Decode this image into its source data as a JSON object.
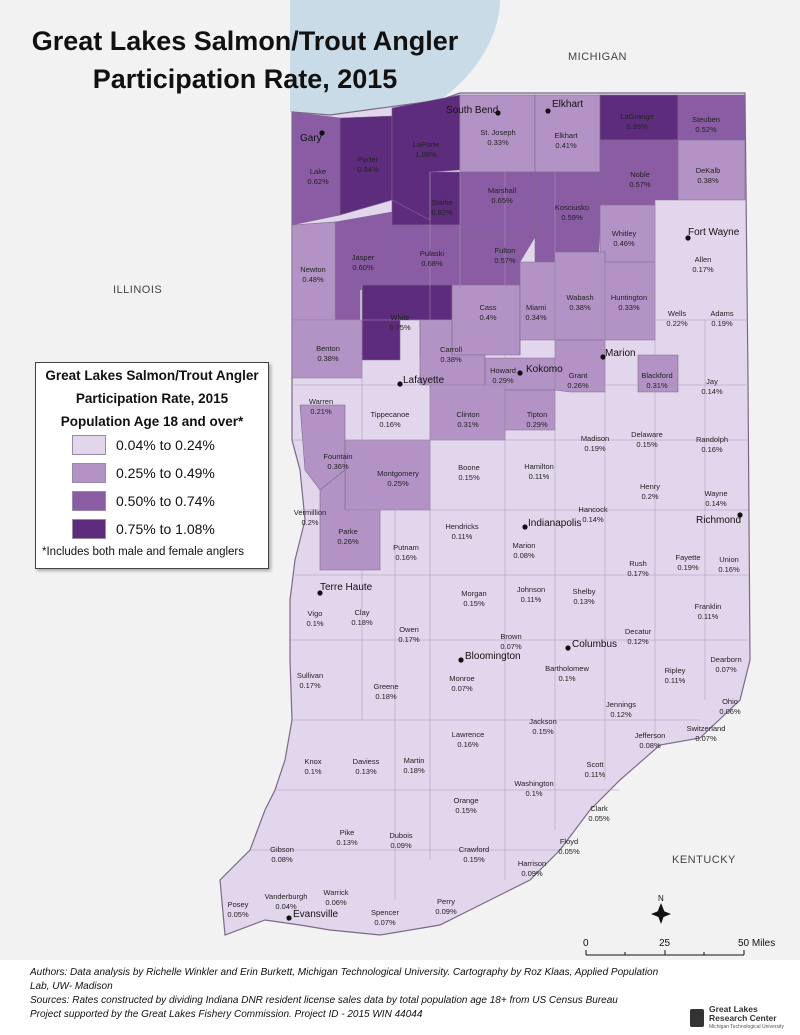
{
  "title_line1": "Great Lakes Salmon/Trout Angler",
  "title_line2": "Participation Rate, 2015",
  "states": {
    "michigan": "MICHIGAN",
    "illinois": "ILLINOIS",
    "kentucky": "KENTUCKY"
  },
  "legend": {
    "title1": "Great Lakes Salmon/Trout Angler",
    "title2": "Participation Rate, 2015",
    "title3": "Population Age 18 and over*",
    "classes": [
      {
        "label": "0.04% to 0.24%",
        "color": "#e2d6ec"
      },
      {
        "label": "0.25% to 0.49%",
        "color": "#b393c5"
      },
      {
        "label": "0.50% to 0.74%",
        "color": "#8a5ca4"
      },
      {
        "label": "0.75% to 1.08%",
        "color": "#5e2c7c"
      }
    ],
    "note": "*Includes both male and female anglers"
  },
  "scale": {
    "t0": "0",
    "t1": "25",
    "t2": "50 Miles"
  },
  "footer": {
    "line1": "Authors: Data analysis by Richelle Winkler and Erin Burkett, Michigan Technological University. Cartography by Roz Klaas, Applied Population Lab, UW- Madison",
    "line2": "Sources: Rates constructed by dividing Indiana DNR resident license sales data by total population age 18+ from US Census Bureau",
    "line3": "Project supported by the Great Lakes Fishery Commission. Project ID - 2015 WIN 44044"
  },
  "logo": {
    "line1": "Great Lakes",
    "line2": "Research Center",
    "line3": "Michigan Technological University"
  },
  "cities": [
    {
      "name": "South Bend"
    },
    {
      "name": "Elkhart"
    },
    {
      "name": "Gary"
    },
    {
      "name": "Fort Wayne"
    },
    {
      "name": "Marion"
    },
    {
      "name": "Kokomo"
    },
    {
      "name": "Lafayette"
    },
    {
      "name": "Indianapolis"
    },
    {
      "name": "Richmond"
    },
    {
      "name": "Terre Haute"
    },
    {
      "name": "Bloomington"
    },
    {
      "name": "Columbus"
    },
    {
      "name": "Evansville"
    }
  ],
  "counties": [
    {
      "name": "Lake",
      "value": "0.62%",
      "cls": 2
    },
    {
      "name": "Porter",
      "value": "0.94%",
      "cls": 3
    },
    {
      "name": "LaPorte",
      "value": "1.08%",
      "cls": 3
    },
    {
      "name": "St. Joseph",
      "value": "0.33%",
      "cls": 1
    },
    {
      "name": "Elkhart",
      "value": "0.41%",
      "cls": 1
    },
    {
      "name": "LaGrange",
      "value": "0.95%",
      "cls": 3
    },
    {
      "name": "Steuben",
      "value": "0.52%",
      "cls": 2
    },
    {
      "name": "Newton",
      "value": "0.48%",
      "cls": 1
    },
    {
      "name": "Jasper",
      "value": "0.60%",
      "cls": 2
    },
    {
      "name": "Starke",
      "value": "0.82%",
      "cls": 3
    },
    {
      "name": "Marshall",
      "value": "0.65%",
      "cls": 2
    },
    {
      "name": "Kosciusko",
      "value": "0.59%",
      "cls": 2
    },
    {
      "name": "Noble",
      "value": "0.57%",
      "cls": 2
    },
    {
      "name": "DeKalb",
      "value": "0.38%",
      "cls": 1
    },
    {
      "name": "Pulaski",
      "value": "0.68%",
      "cls": 2
    },
    {
      "name": "Fulton",
      "value": "0.57%",
      "cls": 2
    },
    {
      "name": "Whitley",
      "value": "0.46%",
      "cls": 1
    },
    {
      "name": "Allen",
      "value": "0.17%",
      "cls": 0
    },
    {
      "name": "Benton",
      "value": "0.38%",
      "cls": 1
    },
    {
      "name": "White",
      "value": "0.75%",
      "cls": 3
    },
    {
      "name": "Cass",
      "value": "0.4%",
      "cls": 1
    },
    {
      "name": "Miami",
      "value": "0.34%",
      "cls": 1
    },
    {
      "name": "Wabash",
      "value": "0.38%",
      "cls": 1
    },
    {
      "name": "Huntington",
      "value": "0.33%",
      "cls": 1
    },
    {
      "name": "Wells",
      "value": "0.22%",
      "cls": 0
    },
    {
      "name": "Adams",
      "value": "0.19%",
      "cls": 0
    },
    {
      "name": "Carroll",
      "value": "0.38%",
      "cls": 1
    },
    {
      "name": "Howard",
      "value": "0.29%",
      "cls": 1
    },
    {
      "name": "Grant",
      "value": "0.26%",
      "cls": 1
    },
    {
      "name": "Blackford",
      "value": "0.31%",
      "cls": 1
    },
    {
      "name": "Jay",
      "value": "0.14%",
      "cls": 0
    },
    {
      "name": "Warren",
      "value": "0.21%",
      "cls": 0
    },
    {
      "name": "Tippecanoe",
      "value": "0.16%",
      "cls": 0
    },
    {
      "name": "Clinton",
      "value": "0.31%",
      "cls": 1
    },
    {
      "name": "Tipton",
      "value": "0.29%",
      "cls": 1
    },
    {
      "name": "Madison",
      "value": "0.19%",
      "cls": 0
    },
    {
      "name": "Delaware",
      "value": "0.15%",
      "cls": 0
    },
    {
      "name": "Randolph",
      "value": "0.16%",
      "cls": 0
    },
    {
      "name": "Fountain",
      "value": "0.36%",
      "cls": 1
    },
    {
      "name": "Montgomery",
      "value": "0.25%",
      "cls": 1
    },
    {
      "name": "Boone",
      "value": "0.15%",
      "cls": 0
    },
    {
      "name": "Hamilton",
      "value": "0.11%",
      "cls": 0
    },
    {
      "name": "Vermillion",
      "value": "0.2%",
      "cls": 0
    },
    {
      "name": "Parke",
      "value": "0.26%",
      "cls": 1
    },
    {
      "name": "Hendricks",
      "value": "0.11%",
      "cls": 0
    },
    {
      "name": "Marion",
      "value": "0.08%",
      "cls": 0
    },
    {
      "name": "Hancock",
      "value": "0.14%",
      "cls": 0
    },
    {
      "name": "Henry",
      "value": "0.2%",
      "cls": 0
    },
    {
      "name": "Wayne",
      "value": "0.14%",
      "cls": 0
    },
    {
      "name": "Putnam",
      "value": "0.16%",
      "cls": 0
    },
    {
      "name": "Vigo",
      "value": "0.1%",
      "cls": 0
    },
    {
      "name": "Clay",
      "value": "0.18%",
      "cls": 0
    },
    {
      "name": "Morgan",
      "value": "0.15%",
      "cls": 0
    },
    {
      "name": "Johnson",
      "value": "0.11%",
      "cls": 0
    },
    {
      "name": "Shelby",
      "value": "0.13%",
      "cls": 0
    },
    {
      "name": "Rush",
      "value": "0.17%",
      "cls": 0
    },
    {
      "name": "Fayette",
      "value": "0.19%",
      "cls": 0
    },
    {
      "name": "Union",
      "value": "0.16%",
      "cls": 0
    },
    {
      "name": "Owen",
      "value": "0.17%",
      "cls": 0
    },
    {
      "name": "Brown",
      "value": "0.07%",
      "cls": 0
    },
    {
      "name": "Decatur",
      "value": "0.12%",
      "cls": 0
    },
    {
      "name": "Franklin",
      "value": "0.11%",
      "cls": 0
    },
    {
      "name": "Sullivan",
      "value": "0.17%",
      "cls": 0
    },
    {
      "name": "Greene",
      "value": "0.18%",
      "cls": 0
    },
    {
      "name": "Monroe",
      "value": "0.07%",
      "cls": 0
    },
    {
      "name": "Bartholomew",
      "value": "0.1%",
      "cls": 0
    },
    {
      "name": "Ripley",
      "value": "0.11%",
      "cls": 0
    },
    {
      "name": "Dearborn",
      "value": "0.07%",
      "cls": 0
    },
    {
      "name": "Jennings",
      "value": "0.12%",
      "cls": 0
    },
    {
      "name": "Ohio",
      "value": "0.06%",
      "cls": 0
    },
    {
      "name": "Lawrence",
      "value": "0.16%",
      "cls": 0
    },
    {
      "name": "Jackson",
      "value": "0.15%",
      "cls": 0
    },
    {
      "name": "Jefferson",
      "value": "0.08%",
      "cls": 0
    },
    {
      "name": "Switzerland",
      "value": "0.07%",
      "cls": 0
    },
    {
      "name": "Knox",
      "value": "0.1%",
      "cls": 0
    },
    {
      "name": "Daviess",
      "value": "0.13%",
      "cls": 0
    },
    {
      "name": "Martin",
      "value": "0.18%",
      "cls": 0
    },
    {
      "name": "Scott",
      "value": "0.11%",
      "cls": 0
    },
    {
      "name": "Washington",
      "value": "0.1%",
      "cls": 0
    },
    {
      "name": "Orange",
      "value": "0.15%",
      "cls": 0
    },
    {
      "name": "Clark",
      "value": "0.05%",
      "cls": 0
    },
    {
      "name": "Gibson",
      "value": "0.08%",
      "cls": 0
    },
    {
      "name": "Pike",
      "value": "0.13%",
      "cls": 0
    },
    {
      "name": "Dubois",
      "value": "0.09%",
      "cls": 0
    },
    {
      "name": "Crawford",
      "value": "0.15%",
      "cls": 0
    },
    {
      "name": "Floyd",
      "value": "0.05%",
      "cls": 0
    },
    {
      "name": "Harrison",
      "value": "0.09%",
      "cls": 0
    },
    {
      "name": "Posey",
      "value": "0.05%",
      "cls": 0
    },
    {
      "name": "Vanderburgh",
      "value": "0.04%",
      "cls": 0
    },
    {
      "name": "Warrick",
      "value": "0.06%",
      "cls": 0
    },
    {
      "name": "Spencer",
      "value": "0.07%",
      "cls": 0
    },
    {
      "name": "Perry",
      "value": "0.09%",
      "cls": 0
    }
  ]
}
